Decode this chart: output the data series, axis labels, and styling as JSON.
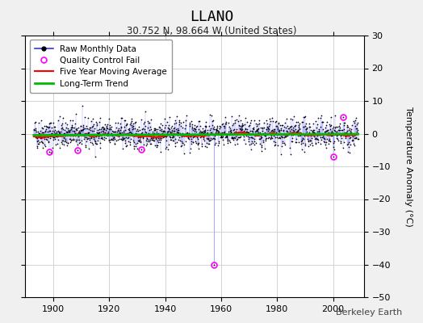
{
  "title": "LLANO",
  "subtitle": "30.752 N, 98.664 W (United States)",
  "ylabel": "Temperature Anomaly (°C)",
  "watermark": "Berkeley Earth",
  "xlim": [
    1890,
    2011
  ],
  "ylim": [
    -50,
    30
  ],
  "yticks": [
    -50,
    -40,
    -30,
    -20,
    -10,
    0,
    10,
    20,
    30
  ],
  "xticks": [
    1900,
    1920,
    1940,
    1960,
    1980,
    2000
  ],
  "bg_color": "#f0f0f0",
  "plot_bg_color": "#ffffff",
  "seed": 42,
  "start_year": 1893,
  "end_year": 2009,
  "raw_color": "#3333ff",
  "qc_color": "#ff00ff",
  "moving_avg_color": "#ff0000",
  "trend_color": "#00bb00"
}
